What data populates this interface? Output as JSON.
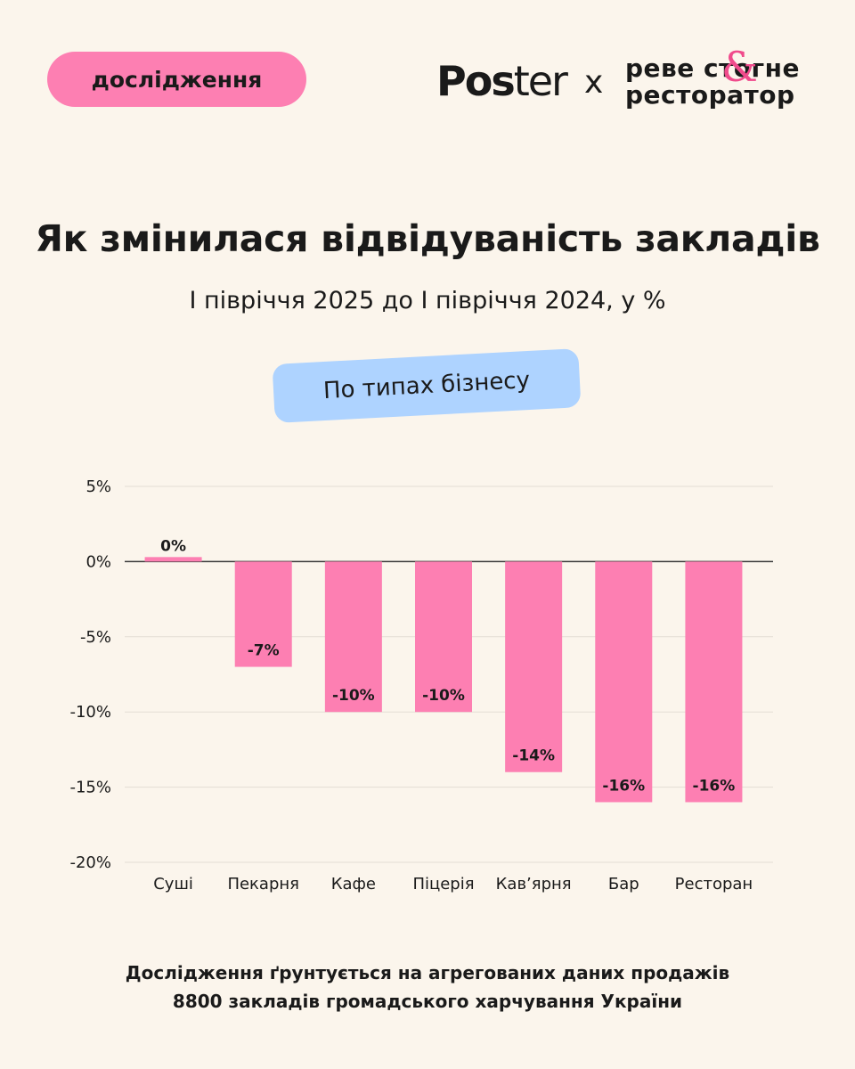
{
  "header": {
    "tag_label": "дослідження",
    "logo_poster_bold": "Pos",
    "logo_poster_light": "ter",
    "logo_x": "x",
    "logo_partner_line1": "реве стогне",
    "logo_partner_line2": "ресторатор",
    "logo_partner_amp": "&"
  },
  "title": "Як змінилася відвідуваність закладів",
  "subtitle": "І півріччя 2025 до І півріччя 2024, у %",
  "filter_pill": "По типах бізнесу",
  "footer": {
    "line1": "Дослідження ґрунтується на агрегованих даних продажів",
    "line2": "8800 закладів громадського харчування України"
  },
  "colors": {
    "background": "#fbf5ec",
    "bar": "#fd7fb2",
    "tag": "#fd7fb2",
    "pill": "#aed3ff",
    "text": "#1a1a1a"
  },
  "chart_data": {
    "type": "bar",
    "categories": [
      "Суші",
      "Пекарня",
      "Кафе",
      "Піцерія",
      "Кав’ярня",
      "Бар",
      "Ресторан"
    ],
    "values": [
      0.3,
      -7,
      -10,
      -10,
      -14,
      -16,
      -16
    ],
    "data_labels": [
      "0%",
      "-7%",
      "-10%",
      "-10%",
      "-14%",
      "-16%",
      "-16%"
    ],
    "ylim": [
      -20,
      5
    ],
    "yticks": [
      5,
      0,
      -5,
      -10,
      -15,
      -20
    ],
    "ytick_labels": [
      "5%",
      "0%",
      "-5%",
      "-10%",
      "-15%",
      "-20%"
    ],
    "grid": true
  }
}
